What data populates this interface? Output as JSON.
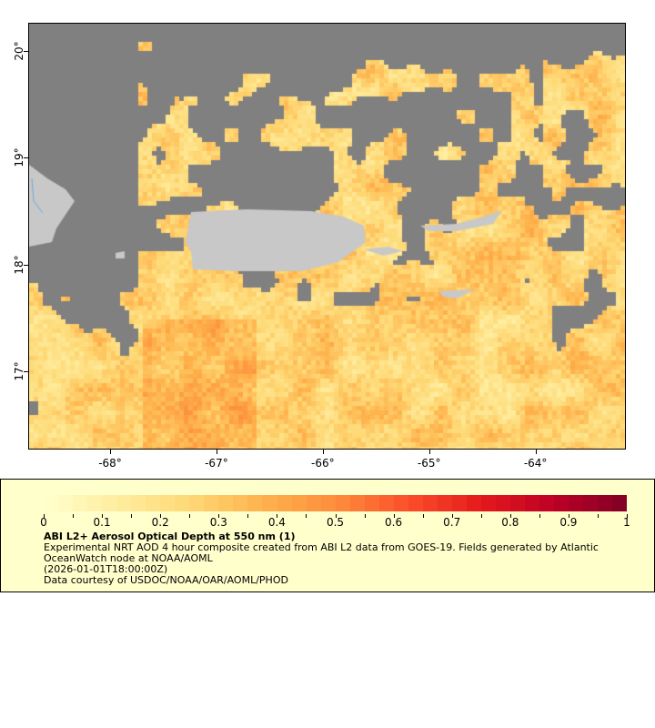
{
  "map": {
    "lon_range": [
      -68.77,
      -63.15
    ],
    "lat_range": [
      16.27,
      20.26
    ],
    "lon_ticks": [
      {
        "value": -68,
        "label": "-68°"
      },
      {
        "value": -67,
        "label": "-67°"
      },
      {
        "value": -66,
        "label": "-66°"
      },
      {
        "value": -65,
        "label": "-65°"
      },
      {
        "value": -64,
        "label": "-64°"
      }
    ],
    "lat_ticks": [
      {
        "value": 20,
        "label": "20°"
      },
      {
        "value": 19,
        "label": "19°"
      },
      {
        "value": 18,
        "label": "18°"
      },
      {
        "value": 17,
        "label": "17°"
      }
    ],
    "colors": {
      "no_data": "#808080",
      "land": "#c8c8c8",
      "river": "#6fa8dc"
    }
  },
  "legend": {
    "colorbar_labels": [
      "0",
      "0.1",
      "0.2",
      "0.3",
      "0.4",
      "0.5",
      "0.6",
      "0.7",
      "0.8",
      "0.9",
      "1"
    ],
    "colorbar_range": [
      0,
      1
    ],
    "colorbar_colors": [
      "#ffffcc",
      "#ffeda0",
      "#fed976",
      "#feb24c",
      "#fd8d3c",
      "#fc4e2a",
      "#e31a1c",
      "#bd0026",
      "#800026"
    ],
    "title": "ABI L2+ Aerosol Optical Depth at 550 nm (1)",
    "description": "Experimental NRT AOD 4 hour composite created from ABI L2 data from GOES-19. Fields generated by Atlantic OceanWatch node at NOAA/AOML",
    "time": "(2026-01-01T18:00:00Z)",
    "credit": "Data courtesy of USDOC/NOAA/OAR/AOML/PHOD"
  }
}
